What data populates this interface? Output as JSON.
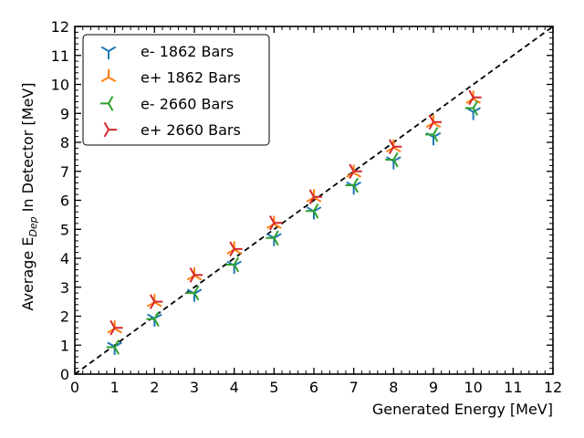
{
  "chart_data": {
    "type": "scatter",
    "xlabel": "Generated Energy [MeV]",
    "ylabel_prefix": "Average E",
    "ylabel_sub": "Dep",
    "ylabel_suffix": " In Detector [MeV]",
    "xlim": [
      0,
      12
    ],
    "ylim": [
      0,
      12
    ],
    "x_ticks": [
      "0",
      "1",
      "2",
      "3",
      "4",
      "5",
      "6",
      "7",
      "8",
      "9",
      "10",
      "11",
      "12"
    ],
    "y_ticks": [
      "0",
      "1",
      "2",
      "3",
      "4",
      "5",
      "6",
      "7",
      "8",
      "9",
      "10",
      "11",
      "12"
    ],
    "grid": false,
    "legend_position": "top-left",
    "reference_line": {
      "style": "dashed",
      "color": "#000000",
      "from": [
        0,
        0
      ],
      "to": [
        12,
        12
      ]
    },
    "x": [
      1,
      2,
      3,
      4,
      5,
      6,
      7,
      8,
      9,
      10
    ],
    "series": [
      {
        "name": "e- 1862 Bars",
        "marker": "tri_down",
        "color": "#1f77b4",
        "values": [
          0.95,
          1.92,
          2.78,
          3.75,
          4.7,
          5.62,
          6.48,
          7.35,
          8.18,
          9.05
        ]
      },
      {
        "name": "e+ 1862 Bars",
        "marker": "tri_up",
        "color": "#ff7f0e",
        "values": [
          1.57,
          2.48,
          3.4,
          4.3,
          5.18,
          6.1,
          6.95,
          7.82,
          8.67,
          9.5
        ]
      },
      {
        "name": "e- 2660 Bars",
        "marker": "tri_left",
        "color": "#2ca02c",
        "values": [
          0.93,
          1.9,
          2.8,
          3.78,
          4.7,
          5.63,
          6.52,
          7.4,
          8.27,
          9.18
        ]
      },
      {
        "name": "e+ 2660 Bars",
        "marker": "tri_right",
        "color": "#d62728",
        "values": [
          1.6,
          2.5,
          3.42,
          4.32,
          5.22,
          6.12,
          7.0,
          7.85,
          8.7,
          9.55
        ]
      }
    ]
  }
}
